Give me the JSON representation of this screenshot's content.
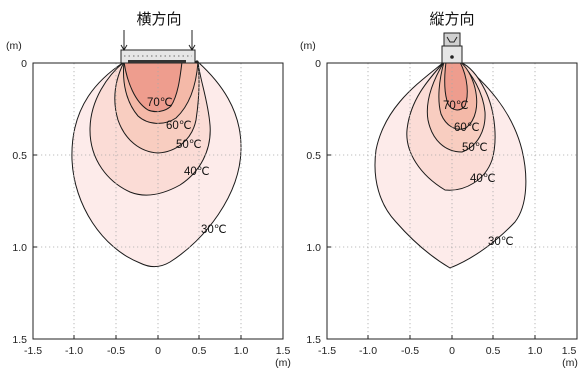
{
  "panels": [
    {
      "title": "横方向",
      "unit_y": "(m)",
      "unit_x": "(m)",
      "x_ticks": [
        "-1.5",
        "-1.0",
        "-0.5",
        "0",
        "0.5",
        "1.0",
        "1.5"
      ],
      "y_ticks": [
        "0",
        "0.5",
        "1.0",
        "1.5"
      ],
      "contours": [
        {
          "label": "30℃",
          "color": "#fdebea"
        },
        {
          "label": "40℃",
          "color": "#fbdcd6"
        },
        {
          "label": "50℃",
          "color": "#f8cdc0"
        },
        {
          "label": "60℃",
          "color": "#f4b9a8"
        },
        {
          "label": "70℃",
          "color": "#ee9d8e"
        }
      ],
      "heater_icon": "heater-side-icon"
    },
    {
      "title": "縦方向",
      "unit_y": "(m)",
      "unit_x": "(m)",
      "x_ticks": [
        "-1.5",
        "-1.0",
        "-0.5",
        "0",
        "0.5",
        "1.0",
        "1.5"
      ],
      "y_ticks": [
        "0",
        "0.5",
        "1.0",
        "1.5"
      ],
      "contours": [
        {
          "label": "30℃",
          "color": "#fdebea"
        },
        {
          "label": "40℃",
          "color": "#fbdcd6"
        },
        {
          "label": "50℃",
          "color": "#f8cdc0"
        },
        {
          "label": "60℃",
          "color": "#f4b9a8"
        },
        {
          "label": "70℃",
          "color": "#ee9d8e"
        }
      ],
      "heater_icon": "heater-end-icon"
    }
  ]
}
